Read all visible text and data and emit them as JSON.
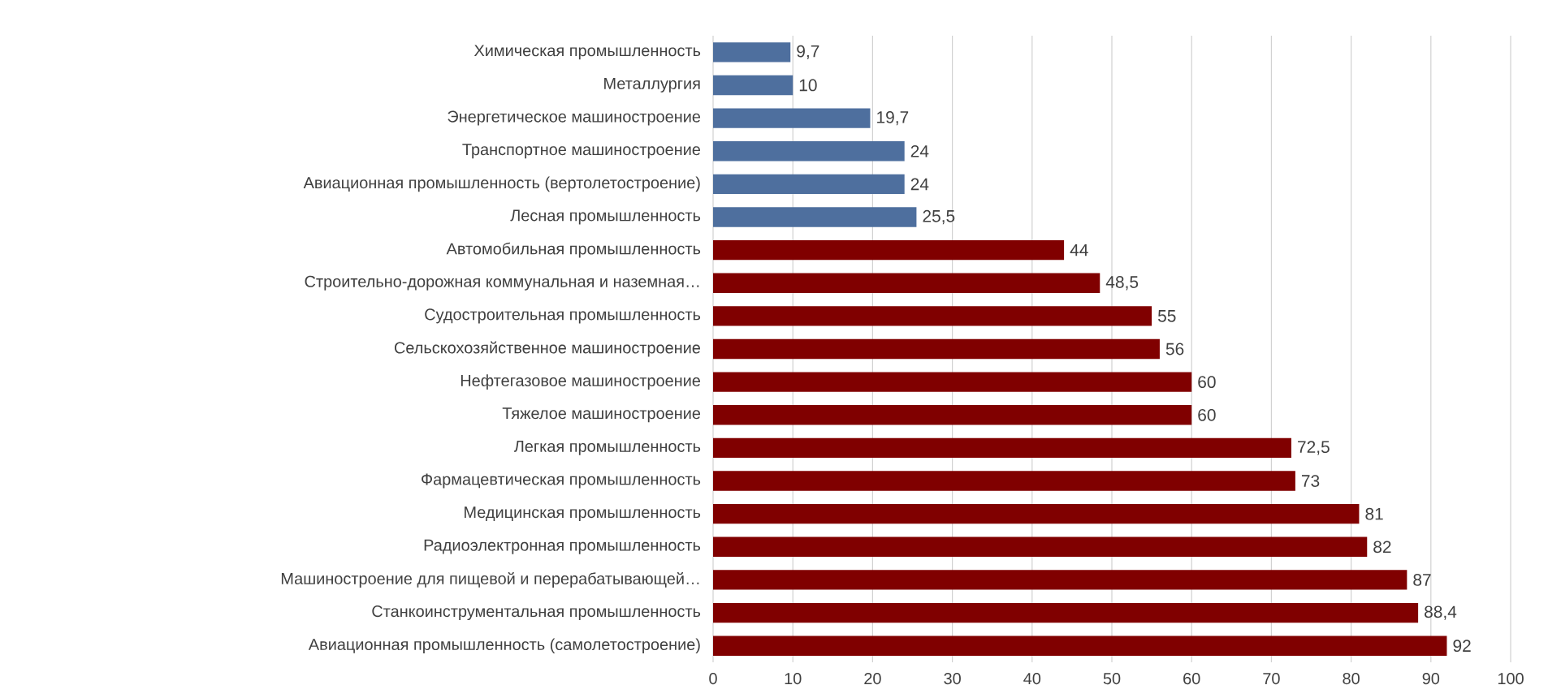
{
  "chart_data": {
    "type": "bar",
    "orientation": "horizontal",
    "categories": [
      "Химическая промышленность",
      "Металлургия",
      "Энергетическое машиностроение",
      "Транспортное машиностроение",
      "Авиационная промышленность (вертолетостроение)",
      "Лесная промышленность",
      "Автомобильная промышленность",
      "Строительно-дорожная коммунальная и наземная…",
      "Судостроительная промышленность",
      "Сельскохозяйственное машиностроение",
      "Нефтегазовое машиностроение",
      "Тяжелое машиностроение",
      "Легкая промышленность",
      "Фармацевтическая промышленность",
      "Медицинская промышленность",
      "Радиоэлектронная промышленность",
      "Машиностроение для пищевой и перерабатывающей…",
      "Станкоинструментальная промышленность",
      "Авиационная промышленность (самолетостроение)"
    ],
    "values": [
      9.7,
      10,
      19.7,
      24,
      24,
      25.5,
      44,
      48.5,
      55,
      56,
      60,
      60,
      72.5,
      73,
      81,
      82,
      87,
      88.4,
      92
    ],
    "value_labels": [
      "9,7",
      "10",
      "19,7",
      "24",
      "24",
      "25,5",
      "44",
      "48,5",
      "55",
      "56",
      "60",
      "60",
      "72,5",
      "73",
      "81",
      "82",
      "87",
      "88,4",
      "92"
    ],
    "colors": [
      "#4e6f9e",
      "#4e6f9e",
      "#4e6f9e",
      "#4e6f9e",
      "#4e6f9e",
      "#4e6f9e",
      "#800000",
      "#800000",
      "#800000",
      "#800000",
      "#800000",
      "#800000",
      "#800000",
      "#800000",
      "#800000",
      "#800000",
      "#800000",
      "#800000",
      "#800000"
    ],
    "xlim": [
      0,
      100
    ],
    "xticks": [
      0,
      10,
      20,
      30,
      40,
      50,
      60,
      70,
      80,
      90,
      100
    ],
    "grid": "x"
  }
}
